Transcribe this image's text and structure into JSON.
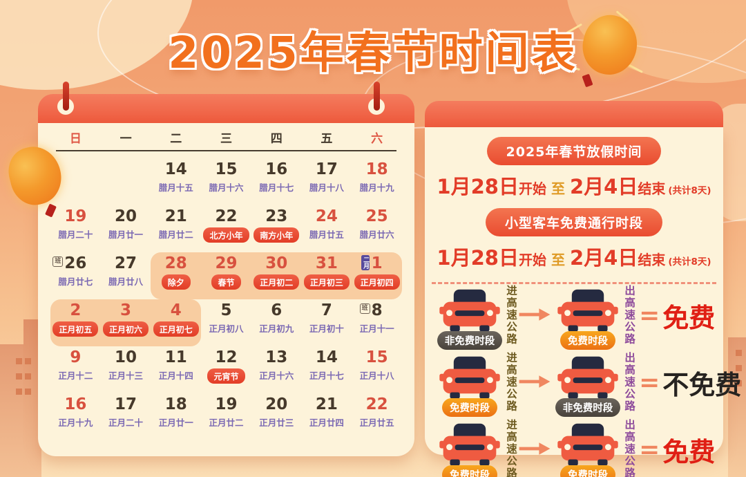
{
  "title": "2025年春节时间表",
  "icons": {
    "car": "car-icon",
    "arrow": "arrow-right-icon",
    "lantern": "lantern-icon"
  },
  "colors": {
    "accent_red": "#e94e31",
    "badge_red": "#e8503a",
    "lunar_purple": "#7a68b3",
    "highlight_band": "#f8cda1",
    "gold": "#df9a25",
    "orange_pill": "#f09a1e",
    "dark_pill": "#55504a",
    "enter_text": "#6d5a20",
    "exit_text": "#8d4a9b",
    "free_red": "#e01f14"
  },
  "calendar": {
    "weekdays": [
      {
        "label": "日",
        "red": true
      },
      {
        "label": "一",
        "red": false
      },
      {
        "label": "二",
        "red": false
      },
      {
        "label": "三",
        "red": false
      },
      {
        "label": "四",
        "red": false
      },
      {
        "label": "五",
        "red": false
      },
      {
        "label": "六",
        "red": true
      }
    ],
    "rows": [
      [
        {
          "n": ""
        },
        {
          "n": ""
        },
        {
          "n": "14",
          "c": "dark",
          "l": "腊月十五",
          "lt": "text"
        },
        {
          "n": "15",
          "c": "dark",
          "l": "腊月十六",
          "lt": "text"
        },
        {
          "n": "16",
          "c": "dark",
          "l": "腊月十七",
          "lt": "text"
        },
        {
          "n": "17",
          "c": "dark",
          "l": "腊月十八",
          "lt": "text"
        },
        {
          "n": "18",
          "c": "red",
          "l": "腊月十九",
          "lt": "text"
        }
      ],
      [
        {
          "n": "19",
          "c": "red",
          "l": "腊月二十",
          "lt": "text"
        },
        {
          "n": "20",
          "c": "dark",
          "l": "腊月廿一",
          "lt": "text"
        },
        {
          "n": "21",
          "c": "dark",
          "l": "腊月廿二",
          "lt": "text"
        },
        {
          "n": "22",
          "c": "dark",
          "l": "北方小年",
          "lt": "badge"
        },
        {
          "n": "23",
          "c": "dark",
          "l": "南方小年",
          "lt": "badge"
        },
        {
          "n": "24",
          "c": "red",
          "l": "腊月廿五",
          "lt": "text"
        },
        {
          "n": "25",
          "c": "red",
          "l": "腊月廿六",
          "lt": "text"
        }
      ],
      [
        {
          "n": "26",
          "c": "dark",
          "l": "腊月廿七",
          "lt": "text",
          "tag": "班"
        },
        {
          "n": "27",
          "c": "dark",
          "l": "腊月廿八",
          "lt": "text"
        },
        {
          "n": "28",
          "c": "red",
          "l": "除夕",
          "lt": "badge",
          "hl": "start"
        },
        {
          "n": "29",
          "c": "red",
          "l": "春节",
          "lt": "badge",
          "hl": "mid"
        },
        {
          "n": "30",
          "c": "red",
          "l": "正月初二",
          "lt": "badge",
          "hl": "mid"
        },
        {
          "n": "31",
          "c": "red",
          "l": "正月初三",
          "lt": "badge",
          "hl": "mid"
        },
        {
          "n": "1",
          "c": "red",
          "l": "正月初四",
          "lt": "badge",
          "hl": "end",
          "tag": "二月"
        }
      ],
      [
        {
          "n": "2",
          "c": "red",
          "l": "正月初五",
          "lt": "badge",
          "hl": "start"
        },
        {
          "n": "3",
          "c": "red",
          "l": "正月初六",
          "lt": "badge",
          "hl": "mid"
        },
        {
          "n": "4",
          "c": "red",
          "l": "正月初七",
          "lt": "badge",
          "hl": "end"
        },
        {
          "n": "5",
          "c": "dark",
          "l": "正月初八",
          "lt": "text"
        },
        {
          "n": "6",
          "c": "dark",
          "l": "正月初九",
          "lt": "text"
        },
        {
          "n": "7",
          "c": "dark",
          "l": "正月初十",
          "lt": "text"
        },
        {
          "n": "8",
          "c": "dark",
          "l": "正月十一",
          "lt": "text",
          "tag": "班"
        }
      ],
      [
        {
          "n": "9",
          "c": "red",
          "l": "正月十二",
          "lt": "text"
        },
        {
          "n": "10",
          "c": "dark",
          "l": "正月十三",
          "lt": "text"
        },
        {
          "n": "11",
          "c": "dark",
          "l": "正月十四",
          "lt": "text"
        },
        {
          "n": "12",
          "c": "dark",
          "l": "元宵节",
          "lt": "badge"
        },
        {
          "n": "13",
          "c": "dark",
          "l": "正月十六",
          "lt": "text"
        },
        {
          "n": "14",
          "c": "dark",
          "l": "正月十七",
          "lt": "text"
        },
        {
          "n": "15",
          "c": "red",
          "l": "正月十八",
          "lt": "text"
        }
      ],
      [
        {
          "n": "16",
          "c": "red",
          "l": "正月十九",
          "lt": "text"
        },
        {
          "n": "17",
          "c": "dark",
          "l": "正月二十",
          "lt": "text"
        },
        {
          "n": "18",
          "c": "dark",
          "l": "正月廿一",
          "lt": "text"
        },
        {
          "n": "19",
          "c": "dark",
          "l": "正月廿二",
          "lt": "text"
        },
        {
          "n": "20",
          "c": "dark",
          "l": "正月廿三",
          "lt": "text"
        },
        {
          "n": "21",
          "c": "dark",
          "l": "正月廿四",
          "lt": "text"
        },
        {
          "n": "22",
          "c": "red",
          "l": "正月廿五",
          "lt": "text"
        }
      ]
    ]
  },
  "panel": {
    "holiday_badge": "2025年春节放假时间",
    "toll_badge": "小型客车免费通行时段",
    "holiday_line": {
      "start": "1月28日",
      "start_word": "开始",
      "to": "至",
      "end": "2月4日",
      "end_word": "结束",
      "total": "(共计8天)"
    },
    "toll_line": {
      "start": "1月28日",
      "start_word": "开始",
      "to": "至",
      "end": "2月4日",
      "end_word": "结束",
      "total": "(共计8天)"
    },
    "rows": [
      {
        "left": "非免费时段",
        "left_style": "dark",
        "enter": "进高速公路",
        "right": "免费时段",
        "right_style": "orange",
        "exit": "出高速公路",
        "eq": "=",
        "result": "免费",
        "result_style": "red"
      },
      {
        "left": "免费时段",
        "left_style": "orange",
        "enter": "进高速公路",
        "right": "非免费时段",
        "right_style": "dark",
        "exit": "出高速公路",
        "eq": "=",
        "result": "不免费",
        "result_style": "dark"
      },
      {
        "left": "免费时段",
        "left_style": "orange",
        "enter": "进高速公路",
        "right": "免费时段",
        "right_style": "orange",
        "exit": "出高速公路",
        "eq": "=",
        "result": "免费",
        "result_style": "red"
      }
    ]
  }
}
